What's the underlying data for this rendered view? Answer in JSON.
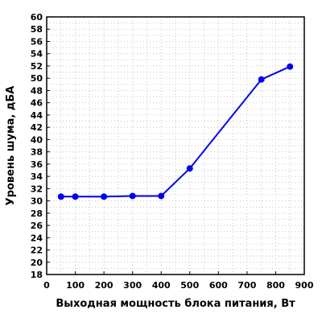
{
  "chart_data": {
    "type": "line",
    "title": "",
    "xlabel": "Выходная мощность блока питания, Вт",
    "ylabel": "Уровень шума, дБА",
    "xlim": [
      0,
      900
    ],
    "ylim": [
      18,
      60
    ],
    "x_ticks": [
      0,
      100,
      200,
      300,
      400,
      500,
      600,
      700,
      800,
      900
    ],
    "y_ticks": [
      18,
      20,
      22,
      24,
      26,
      28,
      30,
      32,
      34,
      36,
      38,
      40,
      42,
      44,
      46,
      48,
      50,
      52,
      54,
      56,
      58,
      60
    ],
    "grid": true,
    "series": [
      {
        "color": "#0000ee",
        "x": [
          50,
          100,
          200,
          300,
          400,
          500,
          750,
          850
        ],
        "y": [
          30.7,
          30.7,
          30.7,
          30.8,
          30.8,
          35.3,
          49.8,
          51.9
        ]
      }
    ]
  }
}
